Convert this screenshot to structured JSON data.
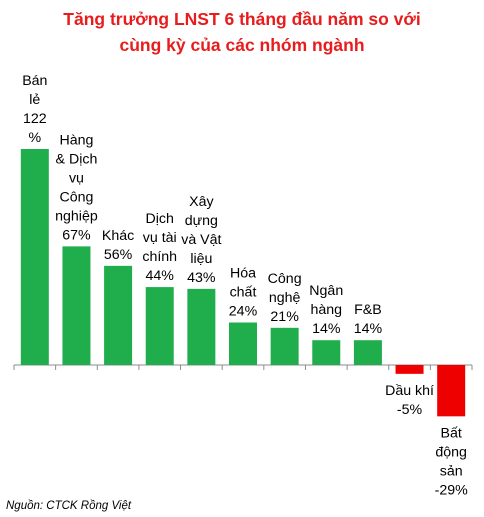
{
  "title_lines": [
    "Tăng trưởng LNST 6 tháng đầu năm so với",
    "cùng kỳ của các nhóm ngành"
  ],
  "source": "Nguồn: CTCK Rồng Việt",
  "colors": {
    "positive": "#1fae4b",
    "negative": "#ef0000",
    "title": "#e81c1c"
  },
  "chart_data": {
    "type": "bar",
    "title": "Tăng trưởng LNST 6 tháng đầu năm so với cùng kỳ của các nhóm ngành",
    "unit": "%",
    "grid": false,
    "legend": "none",
    "categories": [
      "Bán lẻ",
      "Hàng & Dịch vụ Công nghiệp",
      "Khác",
      "Dịch vụ tài chính",
      "Xây dựng và Vật liệu",
      "Hóa chất",
      "Công nghệ",
      "Ngân hàng",
      "F&B",
      "Dầu khí",
      "Bất động sản"
    ],
    "values": [
      122,
      67,
      56,
      44,
      43,
      24,
      21,
      14,
      14,
      -5,
      -29
    ],
    "label_lines": [
      [
        "Bán",
        "lẻ",
        "122",
        "%"
      ],
      [
        "Hàng",
        "& Dịch",
        "vụ",
        "Công",
        "nghiệp",
        "67%"
      ],
      [
        "Khác",
        "56%"
      ],
      [
        "Dịch",
        "vụ tài",
        "chính",
        "44%"
      ],
      [
        "Xây",
        "dựng",
        "và Vật",
        "liệu",
        "43%"
      ],
      [
        "Hóa",
        "chất",
        "24%"
      ],
      [
        "Công",
        "nghệ",
        "21%"
      ],
      [
        "Ngân",
        "hàng",
        "14%"
      ],
      [
        "F&B",
        "14%"
      ],
      [
        "Dầu khí",
        "-5%"
      ],
      [
        "Bất",
        "động",
        "sản",
        "-29%"
      ]
    ]
  }
}
